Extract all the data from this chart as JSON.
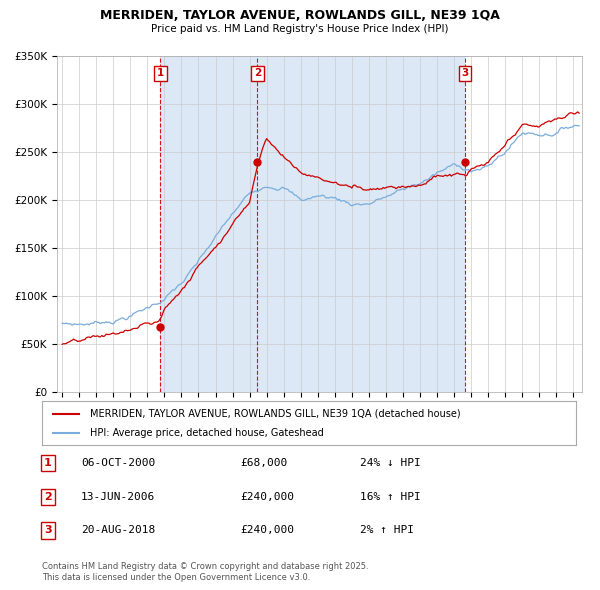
{
  "title": "MERRIDEN, TAYLOR AVENUE, ROWLANDS GILL, NE39 1QA",
  "subtitle": "Price paid vs. HM Land Registry's House Price Index (HPI)",
  "legend_label_red": "MERRIDEN, TAYLOR AVENUE, ROWLANDS GILL, NE39 1QA (detached house)",
  "legend_label_blue": "HPI: Average price, detached house, Gateshead",
  "footer": "Contains HM Land Registry data © Crown copyright and database right 2025.\nThis data is licensed under the Open Government Licence v3.0.",
  "sale_events": [
    {
      "num": 1,
      "date": "06-OCT-2000",
      "price": "£68,000",
      "pct": "24%",
      "dir": "↓",
      "year_x": 2000.77
    },
    {
      "num": 2,
      "date": "13-JUN-2006",
      "price": "£240,000",
      "pct": "16%",
      "dir": "↑",
      "year_x": 2006.45
    },
    {
      "num": 3,
      "date": "20-AUG-2018",
      "price": "£240,000",
      "pct": "2%",
      "dir": "↑",
      "year_x": 2018.63
    }
  ],
  "ylim": [
    0,
    350000
  ],
  "yticks": [
    0,
    50000,
    100000,
    150000,
    200000,
    250000,
    300000,
    350000
  ],
  "ytick_labels": [
    "£0",
    "£50K",
    "£100K",
    "£150K",
    "£200K",
    "£250K",
    "£300K",
    "£350K"
  ],
  "xlim_start": 1994.7,
  "xlim_end": 2025.5,
  "background_color": "#ffffff",
  "grid_color": "#cccccc",
  "red_color": "#cc0000",
  "blue_color": "#7aaddb",
  "shade_color": "#dce8f5"
}
